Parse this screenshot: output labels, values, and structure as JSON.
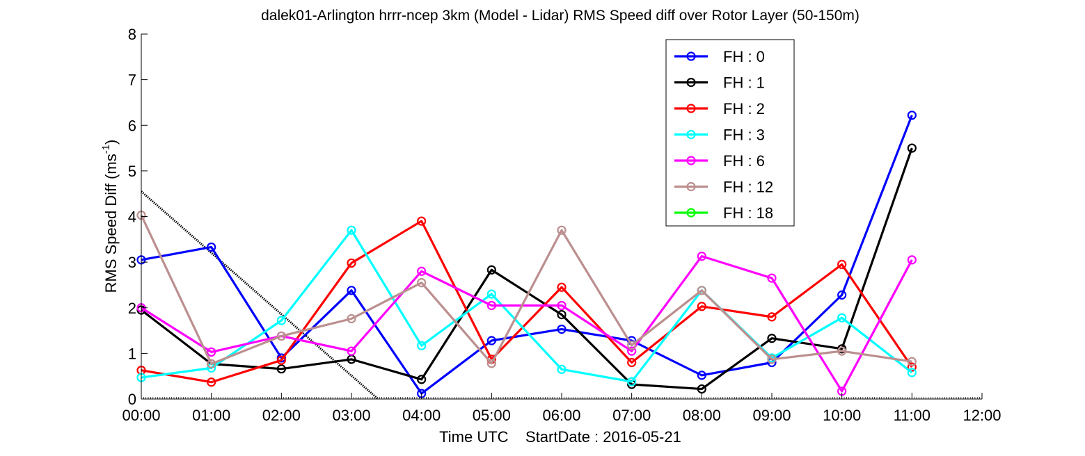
{
  "chart_data": {
    "type": "line",
    "title": "dalek01-Arlington hrrr-ncep 3km (Model - Lidar) RMS Speed diff over Rotor Layer (50-150m)",
    "xlabel": "Time UTC    StartDate : 2016-05-21",
    "ylabel_main": "RMS Speed Diff (ms",
    "ylabel_sup": "-1",
    "ylabel_end": ")",
    "x_ticks": [
      "00:00",
      "01:00",
      "02:00",
      "03:00",
      "04:00",
      "05:00",
      "06:00",
      "07:00",
      "08:00",
      "09:00",
      "10:00",
      "11:00",
      "12:00"
    ],
    "y_ticks": [
      "0",
      "1",
      "2",
      "3",
      "4",
      "5",
      "6",
      "7",
      "8"
    ],
    "xlim": [
      0,
      12
    ],
    "ylim": [
      0,
      8
    ],
    "grid": false,
    "legend_position": "top-right",
    "series": [
      {
        "name": "FH : 0",
        "color": "#0000ff",
        "x": [
          0,
          1,
          2,
          3,
          4,
          5,
          6,
          7,
          8,
          9,
          10,
          11
        ],
        "values": [
          3.05,
          3.33,
          0.9,
          2.38,
          0.12,
          1.28,
          1.53,
          1.28,
          0.52,
          0.8,
          2.28,
          6.22
        ]
      },
      {
        "name": "FH : 1",
        "color": "#000000",
        "x": [
          0,
          1,
          2,
          3,
          4,
          5,
          6,
          7,
          8,
          9,
          10,
          11
        ],
        "values": [
          1.95,
          0.77,
          0.66,
          0.87,
          0.43,
          2.83,
          1.85,
          0.32,
          0.22,
          1.33,
          1.1,
          5.5
        ]
      },
      {
        "name": "FH : 2",
        "color": "#ff0000",
        "x": [
          0,
          1,
          2,
          3,
          4,
          5,
          6,
          7,
          8,
          9,
          10,
          11
        ],
        "values": [
          0.63,
          0.37,
          0.85,
          2.98,
          3.9,
          0.87,
          2.45,
          0.8,
          2.03,
          1.8,
          2.95,
          0.7
        ]
      },
      {
        "name": "FH : 3",
        "color": "#00ffff",
        "x": [
          0,
          1,
          2,
          3,
          4,
          5,
          6,
          7,
          8,
          9,
          10,
          11
        ],
        "values": [
          0.47,
          0.68,
          1.72,
          3.7,
          1.17,
          2.3,
          0.65,
          0.38,
          2.38,
          0.9,
          1.78,
          0.58
        ]
      },
      {
        "name": "FH : 6",
        "color": "#ff00ff",
        "x": [
          0,
          1,
          2,
          3,
          4,
          5,
          6,
          7,
          8,
          9,
          10,
          11
        ],
        "values": [
          2.0,
          1.03,
          1.38,
          1.05,
          2.8,
          2.05,
          2.05,
          1.05,
          3.13,
          2.65,
          0.17,
          3.05
        ]
      },
      {
        "name": "FH : 12",
        "color": "#bc8f8f",
        "x": [
          0,
          1,
          2,
          3,
          4,
          5,
          6,
          7,
          8,
          9,
          10,
          11
        ],
        "values": [
          4.03,
          0.77,
          1.38,
          1.76,
          2.55,
          0.78,
          3.7,
          1.18,
          2.38,
          0.87,
          1.05,
          0.82
        ]
      },
      {
        "name": "FH : 18",
        "color": "#00ff00",
        "x": [],
        "values": []
      }
    ],
    "trend_line": {
      "color": "#000000",
      "x": [
        0,
        3.38
      ],
      "values": [
        4.55,
        0
      ]
    }
  }
}
